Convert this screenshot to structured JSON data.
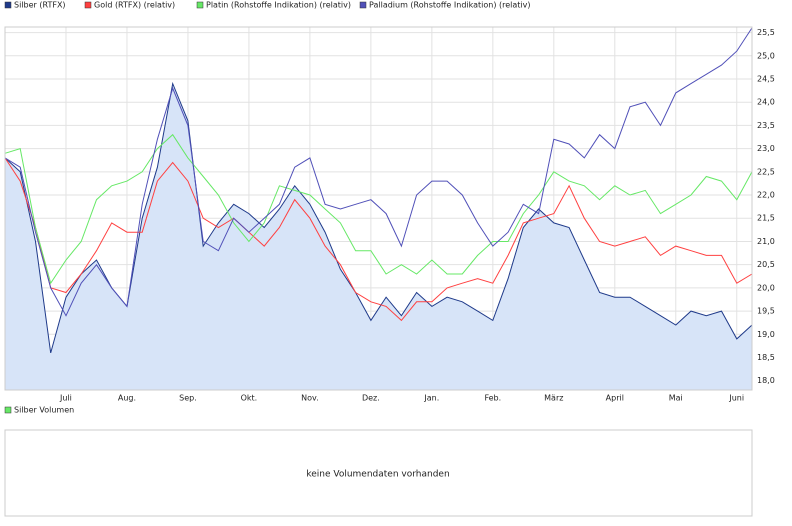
{
  "chart_data": {
    "type": "line",
    "categories": [
      null,
      null,
      null,
      null,
      "Juli",
      null,
      null,
      null,
      "Aug.",
      null,
      null,
      null,
      "Sep.",
      null,
      null,
      null,
      "Okt.",
      null,
      null,
      null,
      "Nov.",
      null,
      null,
      null,
      "Dez.",
      null,
      null,
      null,
      "Jan.",
      null,
      null,
      null,
      "Feb.",
      null,
      null,
      null,
      "März",
      null,
      null,
      null,
      "April",
      null,
      null,
      null,
      "Mai",
      null,
      null,
      null,
      "Juni",
      null
    ],
    "series": [
      {
        "name": "Silber (RTFX)",
        "color": "#1f3a8a",
        "area": true,
        "area_color": "#d7e4f8",
        "values": [
          22.8,
          22.5,
          21.0,
          18.6,
          19.8,
          20.3,
          20.6,
          20.0,
          19.6,
          21.5,
          22.6,
          24.4,
          23.6,
          20.9,
          21.4,
          21.8,
          21.6,
          21.3,
          21.7,
          22.2,
          21.8,
          21.2,
          20.4,
          19.9,
          19.3,
          19.8,
          19.4,
          19.9,
          19.6,
          19.8,
          19.7,
          19.5,
          19.3,
          20.2,
          21.3,
          21.7,
          21.4,
          21.3,
          20.6,
          19.9,
          19.8,
          19.8,
          19.6,
          19.4,
          19.2,
          19.5,
          19.4,
          19.5,
          18.9,
          19.2
        ]
      },
      {
        "name": "Gold (RTFX) (relativ)",
        "color": "#ff4040",
        "values": [
          22.8,
          22.3,
          21.3,
          20.0,
          19.9,
          20.3,
          20.8,
          21.4,
          21.2,
          21.2,
          22.3,
          22.7,
          22.3,
          21.5,
          21.3,
          21.5,
          21.2,
          20.9,
          21.3,
          21.9,
          21.5,
          20.9,
          20.5,
          19.9,
          19.7,
          19.6,
          19.3,
          19.7,
          19.7,
          20.0,
          20.1,
          20.2,
          20.1,
          20.7,
          21.4,
          21.5,
          21.6,
          22.2,
          21.5,
          21.0,
          20.9,
          21.0,
          21.1,
          20.7,
          20.9,
          20.8,
          20.7,
          20.7,
          20.1,
          20.3
        ]
      },
      {
        "name": "Platin (Rohstoffe Indikation) (relativ)",
        "color": "#66e866",
        "values": [
          22.9,
          23.0,
          21.3,
          20.1,
          20.6,
          21.0,
          21.9,
          22.2,
          22.3,
          22.5,
          23.0,
          23.3,
          22.8,
          22.4,
          22.0,
          21.4,
          21.0,
          21.4,
          22.2,
          22.1,
          22.0,
          21.7,
          21.4,
          20.8,
          20.8,
          20.3,
          20.5,
          20.3,
          20.6,
          20.3,
          20.3,
          20.7,
          21.0,
          21.0,
          21.6,
          22.0,
          22.5,
          22.3,
          22.2,
          21.9,
          22.2,
          22.0,
          22.1,
          21.6,
          21.8,
          22.0,
          22.4,
          22.3,
          21.9,
          22.5
        ]
      },
      {
        "name": "Palladium (Rohstoffe Indikation) (relativ)",
        "color": "#5050b8",
        "values": [
          22.8,
          22.6,
          21.2,
          20.0,
          19.4,
          20.1,
          20.5,
          20.0,
          19.6,
          21.8,
          23.2,
          24.3,
          23.5,
          21.0,
          20.8,
          21.5,
          21.2,
          21.5,
          21.8,
          22.6,
          22.8,
          21.8,
          21.7,
          21.8,
          21.9,
          21.6,
          20.9,
          22.0,
          22.3,
          22.3,
          22.0,
          21.4,
          20.9,
          21.2,
          21.8,
          21.6,
          23.2,
          23.1,
          22.8,
          23.3,
          23.0,
          23.9,
          24.0,
          23.5,
          24.2,
          24.4,
          24.6,
          24.8,
          25.1,
          25.6
        ]
      }
    ],
    "ylim": [
      17.8,
      25.62
    ],
    "yticks": [
      {
        "value": 18.0,
        "label": "18,0"
      },
      {
        "value": 18.5,
        "label": "18,5"
      },
      {
        "value": 19.0,
        "label": "19,0"
      },
      {
        "value": 19.5,
        "label": "19,5"
      },
      {
        "value": 20.0,
        "label": "20,0"
      },
      {
        "value": 20.5,
        "label": "20,5"
      },
      {
        "value": 21.0,
        "label": "21,0"
      },
      {
        "value": 21.5,
        "label": "21,5"
      },
      {
        "value": 22.0,
        "label": "22,0"
      },
      {
        "value": 22.5,
        "label": "22,5"
      },
      {
        "value": 23.0,
        "label": "23,0"
      },
      {
        "value": 23.5,
        "label": "23,5"
      },
      {
        "value": 24.0,
        "label": "24,0"
      },
      {
        "value": 24.5,
        "label": "24,5"
      },
      {
        "value": 25.0,
        "label": "25,0"
      },
      {
        "value": 25.5,
        "label": "25,5"
      }
    ],
    "grid": true
  },
  "volume_panel": {
    "legend": "Silber Volumen",
    "color": "#66e866",
    "message": "keine Volumendaten vorhanden"
  }
}
